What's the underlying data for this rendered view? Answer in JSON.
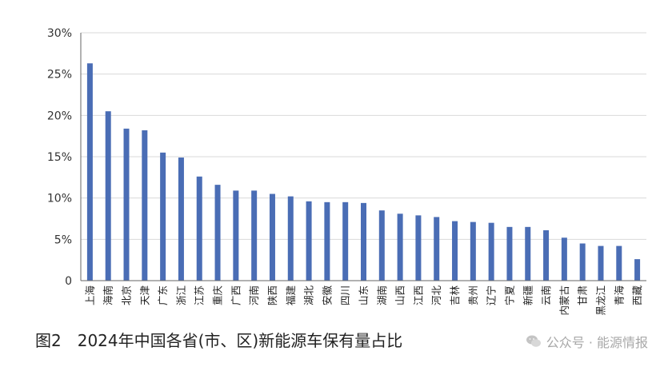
{
  "caption": "图2　2024年中国各省(市、区)新能源车保有量占比",
  "watermark": {
    "text": "公众号 · 能源情报",
    "icon": "wechat-icon"
  },
  "colors": {
    "bar": "#4a6db5",
    "grid": "#d9d9d9",
    "axis": "#666666"
  },
  "chart_data": {
    "type": "bar",
    "title": "",
    "xlabel": "",
    "ylabel": "",
    "ylim": [
      0,
      30
    ],
    "y_ticks": [
      "0",
      "5%",
      "10%",
      "15%",
      "20%",
      "25%",
      "30%"
    ],
    "grid": true,
    "categories": [
      "上海",
      "海南",
      "北京",
      "天津",
      "广东",
      "浙江",
      "江苏",
      "重庆",
      "广西",
      "河南",
      "陕西",
      "福建",
      "湖北",
      "安徽",
      "四川",
      "山东",
      "湖南",
      "山西",
      "江西",
      "河北",
      "吉林",
      "贵州",
      "辽宁",
      "宁夏",
      "新疆",
      "云南",
      "内蒙古",
      "甘肃",
      "黑龙江",
      "青海",
      "西藏"
    ],
    "values": [
      26.3,
      20.5,
      18.4,
      18.2,
      15.5,
      14.9,
      12.6,
      11.6,
      10.9,
      10.9,
      10.5,
      10.2,
      9.6,
      9.5,
      9.5,
      9.4,
      8.5,
      8.1,
      7.9,
      7.7,
      7.2,
      7.1,
      7.0,
      6.5,
      6.5,
      6.1,
      5.2,
      4.5,
      4.2,
      4.2,
      2.6
    ]
  }
}
